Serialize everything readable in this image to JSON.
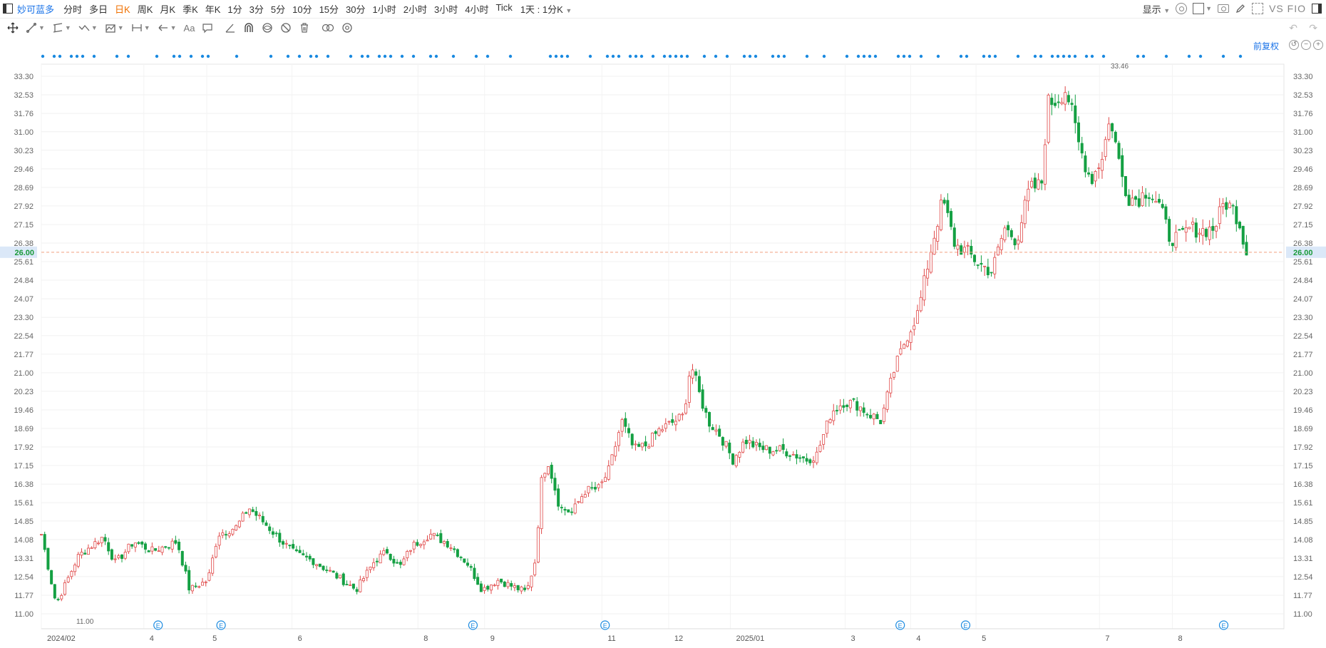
{
  "toolbar": {
    "stock_name": "妙可蓝多",
    "periods": [
      "分时",
      "多日",
      "日K",
      "周K",
      "月K",
      "季K",
      "年K",
      "1分",
      "3分",
      "5分",
      "10分",
      "15分",
      "30分",
      "1小时",
      "2小时",
      "3小时",
      "4小时",
      "Tick"
    ],
    "active_period": "日K",
    "period_select": "1天 : 1分K",
    "display_label": "显示",
    "vs_label": "VS FIO"
  },
  "fuquan_label": "前复权",
  "chart_data": {
    "type": "candlestick",
    "y_ticks": [
      "33.30",
      "32.53",
      "31.76",
      "31.00",
      "30.23",
      "29.46",
      "28.69",
      "27.92",
      "27.15",
      "26.38",
      "25.61",
      "24.84",
      "24.07",
      "23.30",
      "22.54",
      "21.77",
      "21.00",
      "20.23",
      "19.46",
      "18.69",
      "17.92",
      "17.15",
      "16.38",
      "15.61",
      "14.85",
      "14.08",
      "13.31",
      "12.54",
      "11.77",
      "11.00"
    ],
    "ylim": [
      10.8,
      33.8
    ],
    "x_labels": [
      {
        "label": "2024/02",
        "pos": 0
      },
      {
        "label": "4",
        "pos": 0.083
      },
      {
        "label": "5",
        "pos": 0.134
      },
      {
        "label": "6",
        "pos": 0.203
      },
      {
        "label": "8",
        "pos": 0.305
      },
      {
        "label": "9",
        "pos": 0.359
      },
      {
        "label": "11",
        "pos": 0.454
      },
      {
        "label": "12",
        "pos": 0.508
      },
      {
        "label": "2025/01",
        "pos": 0.558
      },
      {
        "label": "3",
        "pos": 0.651
      },
      {
        "label": "4",
        "pos": 0.704
      },
      {
        "label": "5",
        "pos": 0.757
      },
      {
        "label": "7",
        "pos": 0.857
      },
      {
        "label": "8",
        "pos": 0.916
      }
    ],
    "current_price": "26.00",
    "max_label": "33.46",
    "min_label": "11.00",
    "event_marker_label": "E",
    "event_markers": [
      0.083,
      0.134,
      0.338,
      0.445,
      0.684,
      0.737,
      0.946
    ],
    "key_closes": [
      [
        0,
        14.3
      ],
      [
        0.012,
        11.4
      ],
      [
        0.03,
        13.4
      ],
      [
        0.05,
        14.2
      ],
      [
        0.06,
        13.1
      ],
      [
        0.075,
        14.0
      ],
      [
        0.09,
        13.6
      ],
      [
        0.11,
        14.0
      ],
      [
        0.12,
        12.0
      ],
      [
        0.135,
        12.4
      ],
      [
        0.143,
        14.3
      ],
      [
        0.158,
        14.6
      ],
      [
        0.168,
        15.4
      ],
      [
        0.18,
        14.8
      ],
      [
        0.193,
        14.1
      ],
      [
        0.205,
        13.5
      ],
      [
        0.22,
        13.2
      ],
      [
        0.235,
        12.7
      ],
      [
        0.255,
        12.0
      ],
      [
        0.27,
        13.2
      ],
      [
        0.28,
        13.6
      ],
      [
        0.29,
        12.9
      ],
      [
        0.3,
        13.8
      ],
      [
        0.315,
        14.3
      ],
      [
        0.33,
        13.9
      ],
      [
        0.345,
        13.1
      ],
      [
        0.357,
        12.0
      ],
      [
        0.37,
        12.4
      ],
      [
        0.383,
        12.1
      ],
      [
        0.393,
        11.9
      ],
      [
        0.401,
        13.4
      ],
      [
        0.404,
        16.3
      ],
      [
        0.41,
        17.4
      ],
      [
        0.42,
        15.4
      ],
      [
        0.43,
        15.2
      ],
      [
        0.44,
        16.1
      ],
      [
        0.452,
        16.2
      ],
      [
        0.46,
        17.0
      ],
      [
        0.47,
        19.0
      ],
      [
        0.48,
        17.8
      ],
      [
        0.49,
        18.0
      ],
      [
        0.5,
        18.6
      ],
      [
        0.51,
        18.9
      ],
      [
        0.52,
        19.2
      ],
      [
        0.526,
        21.4
      ],
      [
        0.533,
        20.1
      ],
      [
        0.54,
        19.0
      ],
      [
        0.55,
        18.4
      ],
      [
        0.56,
        17.4
      ],
      [
        0.57,
        18.2
      ],
      [
        0.58,
        17.9
      ],
      [
        0.59,
        17.8
      ],
      [
        0.6,
        17.8
      ],
      [
        0.61,
        17.6
      ],
      [
        0.62,
        17.4
      ],
      [
        0.628,
        17.6
      ],
      [
        0.64,
        19.4
      ],
      [
        0.65,
        19.8
      ],
      [
        0.66,
        19.7
      ],
      [
        0.67,
        19.3
      ],
      [
        0.68,
        19.0
      ],
      [
        0.69,
        21.0
      ],
      [
        0.7,
        22.4
      ],
      [
        0.71,
        23.5
      ],
      [
        0.72,
        26.0
      ],
      [
        0.73,
        28.2
      ],
      [
        0.74,
        26.3
      ],
      [
        0.75,
        26.0
      ],
      [
        0.76,
        25.5
      ],
      [
        0.77,
        25.2
      ],
      [
        0.78,
        27.0
      ],
      [
        0.79,
        26.5
      ],
      [
        0.8,
        28.6
      ],
      [
        0.81,
        28.8
      ],
      [
        0.815,
        32.2
      ],
      [
        0.822,
        32.3
      ],
      [
        0.83,
        32.8
      ],
      [
        0.84,
        30.5
      ],
      [
        0.85,
        29.0
      ],
      [
        0.858,
        29.8
      ],
      [
        0.866,
        31.6
      ],
      [
        0.874,
        29.4
      ],
      [
        0.88,
        28.3
      ],
      [
        0.888,
        28.2
      ],
      [
        0.896,
        28.6
      ],
      [
        0.905,
        28.0
      ],
      [
        0.914,
        26.6
      ],
      [
        0.922,
        26.6
      ],
      [
        0.93,
        27.0
      ],
      [
        0.94,
        26.9
      ],
      [
        0.95,
        27.0
      ],
      [
        0.958,
        28.1
      ],
      [
        0.965,
        27.8
      ],
      [
        0.97,
        27.3
      ],
      [
        0.976,
        26.0
      ]
    ]
  }
}
